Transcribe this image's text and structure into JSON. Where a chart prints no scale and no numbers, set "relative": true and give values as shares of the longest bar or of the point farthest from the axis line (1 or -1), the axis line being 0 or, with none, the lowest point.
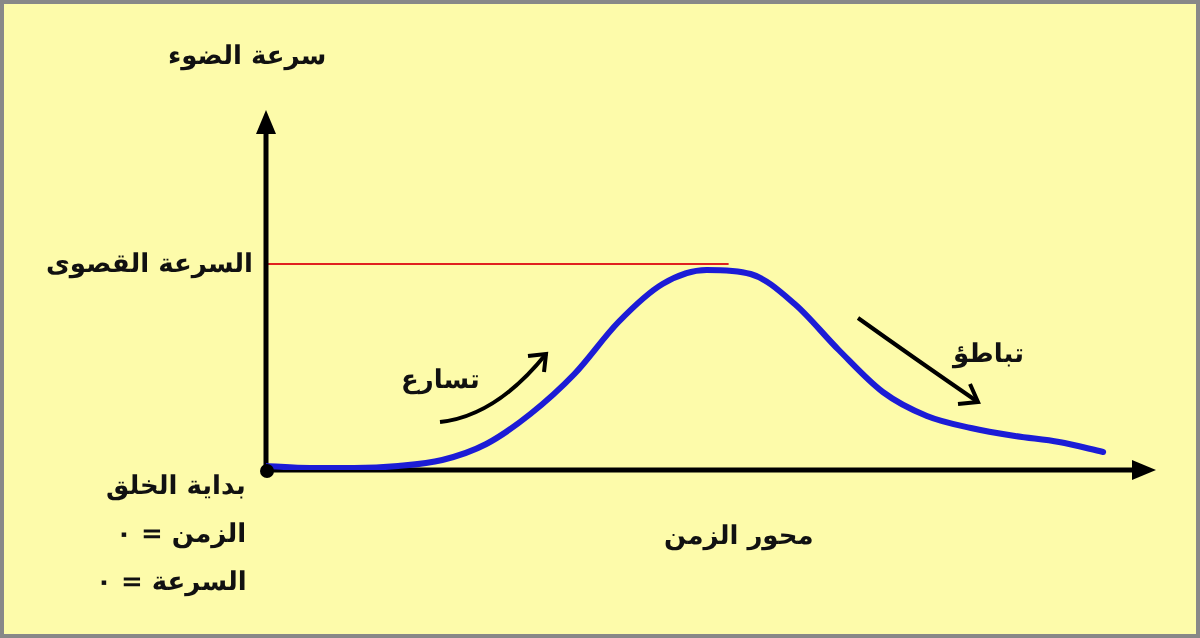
{
  "chart_data": {
    "type": "line",
    "relative": true,
    "xlabel": "محور الزمن",
    "categories": [
      null,
      null,
      null,
      null,
      null,
      null,
      null,
      null,
      null,
      null,
      null,
      null,
      null,
      null,
      null,
      null,
      null,
      null,
      null,
      null
    ],
    "series": [
      {
        "color": "#1c1cd6",
        "values": [
          0.02,
          0.01,
          0.01,
          0.02,
          0.05,
          0.13,
          0.28,
          0.48,
          0.74,
          0.93,
          1,
          0.98,
          0.83,
          0.6,
          0.39,
          0.27,
          0.21,
          0.17,
          0.14,
          0.09
        ]
      }
    ],
    "ref_lines": [
      {
        "axis": "y",
        "value": 1.03,
        "label": "السرعة القصوى",
        "color": "#e02020"
      }
    ],
    "annotations": [
      "سرعة الضوء",
      "تسارع",
      "تباطؤ",
      "بداية الخلق",
      "الزمن = ٠",
      "السرعة = ٠"
    ],
    "marker": "none",
    "line_style": "solid",
    "legend": false
  }
}
